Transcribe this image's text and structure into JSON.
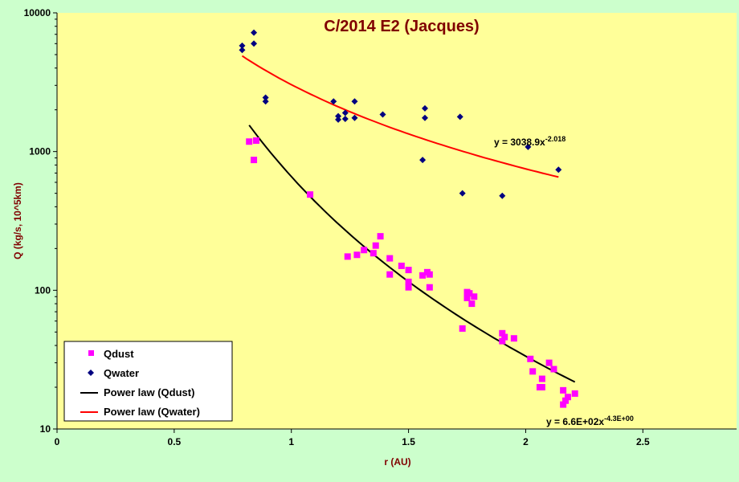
{
  "chart_data": {
    "type": "scatter",
    "title": "C/2014 E2 (Jacques)",
    "xlabel": "r (AU)",
    "ylabel": "Q (kg/s, 10^5km)",
    "xlim": [
      0,
      2.9
    ],
    "ylim": [
      10,
      10000
    ],
    "yscale": "log",
    "xticks": [
      "0",
      "0.5",
      "1",
      "1.5",
      "2",
      "2.5"
    ],
    "yticks": [
      "10",
      "100",
      "1000",
      "10000"
    ],
    "grid": false,
    "legend_position": "bottom-left",
    "colors": {
      "plot_bg": "#ffff99",
      "page_bg": "#ccffcc",
      "qdust": "#ff00ff",
      "qwater": "#000080",
      "fit_dust": "#000000",
      "fit_water": "#ff0000"
    },
    "series": [
      {
        "name": "Qdust",
        "marker": "square",
        "points": [
          [
            0.82,
            1180
          ],
          [
            0.84,
            870
          ],
          [
            0.85,
            1200
          ],
          [
            1.08,
            490
          ],
          [
            1.24,
            175
          ],
          [
            1.28,
            180
          ],
          [
            1.31,
            195
          ],
          [
            1.35,
            185
          ],
          [
            1.36,
            210
          ],
          [
            1.38,
            245
          ],
          [
            1.42,
            170
          ],
          [
            1.42,
            130
          ],
          [
            1.47,
            150
          ],
          [
            1.5,
            140
          ],
          [
            1.5,
            115
          ],
          [
            1.5,
            105
          ],
          [
            1.56,
            128
          ],
          [
            1.58,
            135
          ],
          [
            1.59,
            130
          ],
          [
            1.59,
            105
          ],
          [
            1.73,
            53
          ],
          [
            1.75,
            97
          ],
          [
            1.75,
            88
          ],
          [
            1.76,
            95
          ],
          [
            1.77,
            80
          ],
          [
            1.78,
            90
          ],
          [
            1.9,
            49
          ],
          [
            1.9,
            43
          ],
          [
            1.91,
            46
          ],
          [
            1.95,
            45
          ],
          [
            2.02,
            32
          ],
          [
            2.03,
            26
          ],
          [
            2.06,
            20
          ],
          [
            2.07,
            23
          ],
          [
            2.07,
            20
          ],
          [
            2.1,
            30
          ],
          [
            2.12,
            27
          ],
          [
            2.16,
            19
          ],
          [
            2.16,
            15
          ],
          [
            2.17,
            16
          ],
          [
            2.18,
            17
          ],
          [
            2.21,
            18
          ]
        ]
      },
      {
        "name": "Qwater",
        "marker": "diamond",
        "points": [
          [
            0.79,
            5800
          ],
          [
            0.79,
            5400
          ],
          [
            0.84,
            7200
          ],
          [
            0.84,
            6000
          ],
          [
            0.89,
            2450
          ],
          [
            0.89,
            2300
          ],
          [
            1.18,
            2300
          ],
          [
            1.2,
            1800
          ],
          [
            1.2,
            1700
          ],
          [
            1.23,
            1900
          ],
          [
            1.23,
            1720
          ],
          [
            1.27,
            2300
          ],
          [
            1.27,
            1750
          ],
          [
            1.39,
            1850
          ],
          [
            1.56,
            870
          ],
          [
            1.57,
            2050
          ],
          [
            1.57,
            1750
          ],
          [
            1.72,
            1780
          ],
          [
            1.73,
            500
          ],
          [
            1.9,
            480
          ],
          [
            2.01,
            1080
          ],
          [
            2.14,
            740
          ]
        ]
      }
    ],
    "fits": [
      {
        "name": "Power law (Qdust)",
        "equation": "y = 6.6E+02x",
        "exponent_label": "-4.3E+00",
        "a": 660,
        "b": -4.3,
        "x_range": [
          0.82,
          2.21
        ]
      },
      {
        "name": "Power law (Qwater)",
        "equation": "y = 3038.9x",
        "exponent_label": "-2.018",
        "a": 3038.9,
        "b": -2.018,
        "x_range": [
          0.79,
          2.14
        ]
      }
    ]
  }
}
